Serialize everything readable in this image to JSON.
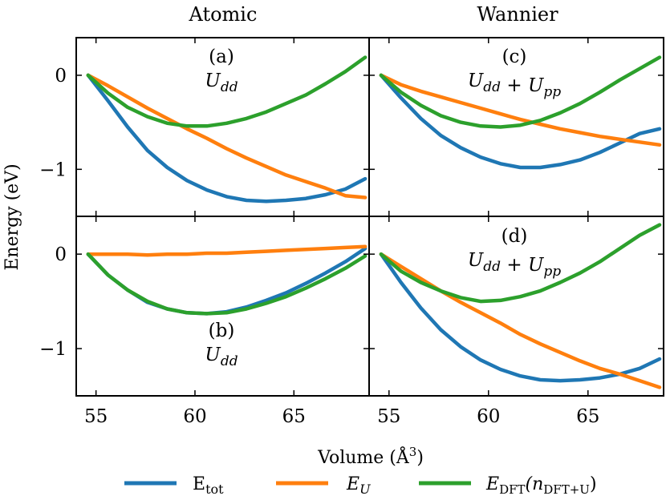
{
  "figure": {
    "column_titles": [
      "Atomic",
      "Wannier"
    ],
    "xlabel": "Volume (Å",
    "xlabel_sup": "3",
    "xlabel_close": ")",
    "ylabel": "Energy (eV)"
  },
  "legend": [
    {
      "key": "etot",
      "base": "E",
      "sub": "tot",
      "italic": false,
      "suffix": ""
    },
    {
      "key": "eu",
      "base": "E",
      "sub": "U",
      "italic": true,
      "suffix": ""
    },
    {
      "key": "edft",
      "base": "E",
      "sub": "DFT",
      "italic": true,
      "suffix": "(n",
      "sub2": "DFT+U",
      "close": ")"
    }
  ],
  "colors": {
    "etot": "#1f77b4",
    "eu": "#ff7f0e",
    "edft": "#2ca02c"
  },
  "chart_data": [
    {
      "panel": "(a)",
      "label": "U_dd",
      "column": "Atomic",
      "type": "line",
      "xlabel": "Volume (Å^3)",
      "ylabel": "Energy (eV)",
      "xlim": [
        54,
        68.8
      ],
      "ylim": [
        -1.5,
        0.4
      ],
      "xticks": [
        55,
        60,
        65
      ],
      "yticks": [
        0,
        -1
      ],
      "x": [
        54.6,
        55.6,
        56.6,
        57.6,
        58.6,
        59.6,
        60.6,
        61.6,
        62.6,
        63.6,
        64.6,
        65.6,
        66.6,
        67.6,
        68.6
      ],
      "series": [
        {
          "name": "E_tot",
          "key": "etot",
          "values": [
            0,
            -0.27,
            -0.55,
            -0.8,
            -0.98,
            -1.12,
            -1.22,
            -1.29,
            -1.33,
            -1.34,
            -1.33,
            -1.31,
            -1.27,
            -1.21,
            -1.1
          ]
        },
        {
          "name": "E_U",
          "key": "eu",
          "values": [
            0,
            -0.11,
            -0.23,
            -0.35,
            -0.46,
            -0.57,
            -0.67,
            -0.78,
            -0.88,
            -0.97,
            -1.06,
            -1.13,
            -1.2,
            -1.28,
            -1.3
          ]
        },
        {
          "name": "E_DFT(n_DFT+U)",
          "key": "edft",
          "values": [
            0,
            -0.19,
            -0.34,
            -0.44,
            -0.51,
            -0.54,
            -0.54,
            -0.51,
            -0.46,
            -0.39,
            -0.3,
            -0.21,
            -0.09,
            0.04,
            0.19
          ]
        }
      ]
    },
    {
      "panel": "(b)",
      "label": "U_dd",
      "column": "Atomic",
      "type": "line",
      "xlabel": "Volume (Å^3)",
      "ylabel": "Energy (eV)",
      "xlim": [
        54,
        68.8
      ],
      "ylim": [
        -1.5,
        0.4
      ],
      "xticks": [
        55,
        60,
        65
      ],
      "yticks": [
        0,
        -1
      ],
      "x": [
        54.6,
        55.6,
        56.6,
        57.6,
        58.6,
        59.6,
        60.6,
        61.6,
        62.6,
        63.6,
        64.6,
        65.6,
        66.6,
        67.6,
        68.6
      ],
      "series": [
        {
          "name": "E_tot",
          "key": "etot",
          "values": [
            0,
            -0.22,
            -0.38,
            -0.51,
            -0.58,
            -0.62,
            -0.63,
            -0.61,
            -0.56,
            -0.49,
            -0.41,
            -0.31,
            -0.2,
            -0.08,
            0.06
          ]
        },
        {
          "name": "E_U",
          "key": "eu",
          "values": [
            0,
            0,
            0,
            -0.01,
            0,
            0,
            0.01,
            0.01,
            0.02,
            0.03,
            0.04,
            0.05,
            0.06,
            0.07,
            0.08
          ]
        },
        {
          "name": "E_DFT(n_DFT+U)",
          "key": "edft",
          "values": [
            0,
            -0.22,
            -0.38,
            -0.5,
            -0.58,
            -0.62,
            -0.63,
            -0.62,
            -0.58,
            -0.52,
            -0.45,
            -0.36,
            -0.26,
            -0.15,
            -0.02
          ]
        }
      ]
    },
    {
      "panel": "(c)",
      "label": "U_dd + U_pp",
      "column": "Wannier",
      "type": "line",
      "xlabel": "Volume (Å^3)",
      "ylabel": "Energy (eV)",
      "xlim": [
        54,
        68.8
      ],
      "ylim": [
        -1.5,
        0.4
      ],
      "xticks": [
        55,
        60,
        65
      ],
      "yticks": [
        0,
        -1
      ],
      "x": [
        54.6,
        55.6,
        56.6,
        57.6,
        58.6,
        59.6,
        60.6,
        61.6,
        62.6,
        63.6,
        64.6,
        65.6,
        66.6,
        67.6,
        68.6
      ],
      "series": [
        {
          "name": "E_tot",
          "key": "etot",
          "values": [
            0,
            -0.24,
            -0.46,
            -0.64,
            -0.77,
            -0.87,
            -0.94,
            -0.98,
            -0.98,
            -0.95,
            -0.9,
            -0.82,
            -0.72,
            -0.62,
            -0.57
          ]
        },
        {
          "name": "E_U",
          "key": "eu",
          "values": [
            0,
            -0.1,
            -0.17,
            -0.23,
            -0.29,
            -0.35,
            -0.41,
            -0.47,
            -0.52,
            -0.57,
            -0.61,
            -0.65,
            -0.68,
            -0.71,
            -0.74
          ]
        },
        {
          "name": "E_DFT(n_DFT+U)",
          "key": "edft",
          "values": [
            0,
            -0.18,
            -0.32,
            -0.43,
            -0.5,
            -0.54,
            -0.55,
            -0.53,
            -0.48,
            -0.4,
            -0.3,
            -0.18,
            -0.05,
            0.07,
            0.19
          ]
        }
      ]
    },
    {
      "panel": "(d)",
      "label": "U_dd + U_pp",
      "column": "Wannier",
      "type": "line",
      "xlabel": "Volume (Å^3)",
      "ylabel": "Energy (eV)",
      "xlim": [
        54,
        68.8
      ],
      "ylim": [
        -1.5,
        0.4
      ],
      "xticks": [
        55,
        60,
        65
      ],
      "yticks": [
        0,
        -1
      ],
      "x": [
        54.6,
        55.6,
        56.6,
        57.6,
        58.6,
        59.6,
        60.6,
        61.6,
        62.6,
        63.6,
        64.6,
        65.6,
        66.6,
        67.6,
        68.6
      ],
      "series": [
        {
          "name": "E_tot",
          "key": "etot",
          "values": [
            0,
            -0.3,
            -0.57,
            -0.8,
            -0.98,
            -1.12,
            -1.22,
            -1.29,
            -1.33,
            -1.34,
            -1.33,
            -1.31,
            -1.27,
            -1.21,
            -1.11
          ]
        },
        {
          "name": "E_U",
          "key": "eu",
          "values": [
            0,
            -0.13,
            -0.26,
            -0.39,
            -0.51,
            -0.62,
            -0.73,
            -0.85,
            -0.95,
            -1.04,
            -1.13,
            -1.21,
            -1.27,
            -1.34,
            -1.41
          ]
        },
        {
          "name": "E_DFT(n_DFT+U)",
          "key": "edft",
          "values": [
            0,
            -0.18,
            -0.3,
            -0.39,
            -0.46,
            -0.5,
            -0.49,
            -0.45,
            -0.39,
            -0.3,
            -0.2,
            -0.08,
            0.06,
            0.2,
            0.31
          ]
        }
      ]
    }
  ]
}
